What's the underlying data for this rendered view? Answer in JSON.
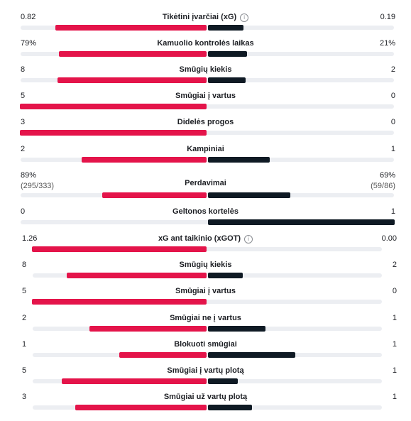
{
  "colors": {
    "home": "#e4144a",
    "away": "#0f1a24",
    "track": "#eceef2"
  },
  "stats": [
    {
      "label": "Tikėtini įvarčiai (xG)",
      "info_icon": true,
      "home": "0.82",
      "away": "0.19",
      "home_share": 0.81,
      "away_share": 0.19
    },
    {
      "label": "Kamuolio kontrolės laikas",
      "home": "79%",
      "away": "21%",
      "home_share": 0.79,
      "away_share": 0.21
    },
    {
      "label": "Smūgių kiekis",
      "home": "8",
      "away": "2",
      "home_share": 0.8,
      "away_share": 0.2
    },
    {
      "label": "Smūgiai į vartus",
      "home": "5",
      "away": "0",
      "home_share": 1.0,
      "away_share": 0.0
    },
    {
      "label": "Didelės progos",
      "home": "3",
      "away": "0",
      "home_share": 1.0,
      "away_share": 0.0
    },
    {
      "label": "Kampiniai",
      "home": "2",
      "away": "1",
      "home_share": 0.67,
      "away_share": 0.33
    },
    {
      "label": "Perdavimai",
      "home": "89%",
      "away": "69%",
      "home_sub": "(295/333)",
      "away_sub": "(59/86)",
      "home_share": 0.56,
      "away_share": 0.44
    },
    {
      "label": "Geltonos kortelės",
      "home": "0",
      "away": "1",
      "home_share": 0.0,
      "away_share": 1.0
    },
    {
      "label": "xG ant taikinio (xGOT)",
      "info_icon": true,
      "home": "1.26",
      "away": "0.00",
      "home_share": 1.0,
      "away_share": 0.0
    },
    {
      "label": "Smūgių kiekis",
      "home": "8",
      "away": "2",
      "home_share": 0.8,
      "away_share": 0.2
    },
    {
      "label": "Smūgiai į vartus",
      "home": "5",
      "away": "0",
      "home_share": 1.0,
      "away_share": 0.0
    },
    {
      "label": "Smūgiai ne į vartus",
      "home": "2",
      "away": "1",
      "home_share": 0.67,
      "away_share": 0.33
    },
    {
      "label": "Blokuoti smūgiai",
      "home": "1",
      "away": "1",
      "home_share": 0.5,
      "away_share": 0.5
    },
    {
      "label": "Smūgiai į vartų plotą",
      "home": "5",
      "away": "1",
      "home_share": 0.83,
      "away_share": 0.17
    },
    {
      "label": "Smūgiai už vartų plotą",
      "home": "3",
      "away": "1",
      "home_share": 0.75,
      "away_share": 0.25
    }
  ]
}
